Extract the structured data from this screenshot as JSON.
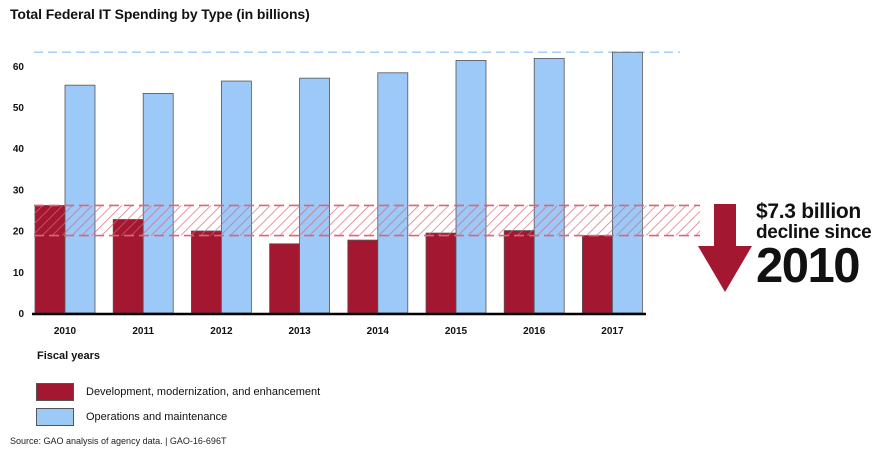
{
  "chart_data": {
    "type": "bar",
    "title": "Total Federal IT Spending by Type (in billions)",
    "xlabel": "Fiscal years",
    "ylabel": "",
    "categories": [
      "2010",
      "2011",
      "2012",
      "2013",
      "2014",
      "2015",
      "2016",
      "2017"
    ],
    "yticks": [
      0,
      10,
      20,
      30,
      40,
      50,
      60
    ],
    "ylim": [
      0,
      66
    ],
    "grid": false,
    "legend_position": "bottom-left",
    "series": [
      {
        "name": "Development, modernization, and enhancement",
        "color": "#a31830",
        "values": [
          26.1,
          22.7,
          19.9,
          16.8,
          17.7,
          19.4,
          20.0,
          18.8
        ]
      },
      {
        "name": "Operations and maintenance",
        "color": "#9cc9f7",
        "values": [
          55.3,
          53.3,
          56.3,
          57.0,
          58.3,
          61.3,
          61.8,
          63.3
        ]
      }
    ],
    "reference_lines": [
      {
        "series": "Operations and maintenance",
        "value": 63.3,
        "style": "dashed",
        "color": "#9cc9f7"
      },
      {
        "series": "Development, modernization, and enhancement",
        "value": 26.1,
        "style": "dashed",
        "color": "#d9667a"
      },
      {
        "series": "Development, modernization, and enhancement",
        "value": 18.8,
        "style": "dashed",
        "color": "#d9667a"
      }
    ],
    "annotation": {
      "amount": "$7.3 billion",
      "text": "decline since",
      "year": "2010",
      "arrow_color": "#a31830"
    }
  },
  "source": "Source: GAO analysis of agency data.  |  GAO-16-696T"
}
